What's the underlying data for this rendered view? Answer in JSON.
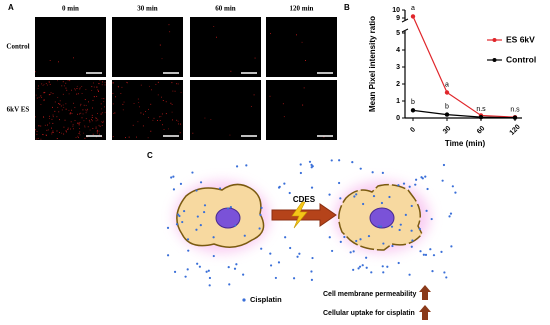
{
  "panel_a": {
    "label": "A",
    "columns": [
      "0 min",
      "30 min",
      "60 min",
      "120 min"
    ],
    "rows": [
      "Control",
      "6kV ES"
    ]
  },
  "chart_data": {
    "type": "line",
    "panel_label": "B",
    "y_label": "Mean Pixel intensity ratio",
    "x_label": "Time (min)",
    "categories": [
      "0",
      "30",
      "60",
      "120"
    ],
    "series": [
      {
        "name": "ES 6kV",
        "color": "#e0262b",
        "values": [
          9.2,
          1.5,
          0.15,
          0.05
        ],
        "labels": [
          "a",
          "a",
          null,
          null
        ]
      },
      {
        "name": "Control",
        "color": "#000000",
        "values": [
          0.45,
          0.2,
          0.05,
          0.02
        ],
        "labels": [
          "b",
          "b",
          "n.s",
          "n.s"
        ]
      }
    ],
    "ylim": [
      0,
      10
    ],
    "ybreak": [
      5,
      9
    ],
    "yticks": [
      0,
      1,
      2,
      3,
      4,
      5,
      9,
      10
    ],
    "legend": "right"
  },
  "panel_c": {
    "label": "C",
    "arrow_label": "CDES",
    "legend": "Cisplatin",
    "effects": [
      "Cell membrane permeability",
      "Cellular uptake for cisplatin"
    ]
  }
}
